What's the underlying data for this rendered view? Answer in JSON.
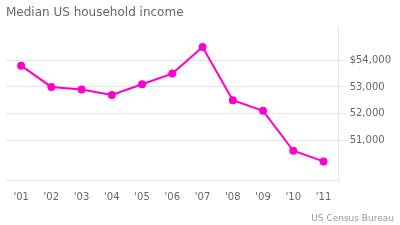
{
  "chart_data": {
    "type": "line",
    "title": "Median US household income",
    "categories": [
      "'01",
      "'02",
      "'03",
      "'04",
      "'05",
      "'06",
      "'07",
      "'08",
      "'09",
      "'10",
      "'11"
    ],
    "values": [
      53800,
      53000,
      52900,
      52700,
      53100,
      53500,
      54500,
      52500,
      52100,
      50600,
      50200
    ],
    "color": "#ff00cc",
    "marker": "circle",
    "ylim": [
      49500,
      55200
    ],
    "yticks": [
      {
        "value": 51000,
        "label": "51,000"
      },
      {
        "value": 52000,
        "label": "52,000"
      },
      {
        "value": 53000,
        "label": "53,000"
      },
      {
        "value": 54000,
        "label": "$54,000"
      }
    ],
    "grid": true,
    "annotations": [
      "US Census Bureau"
    ]
  }
}
